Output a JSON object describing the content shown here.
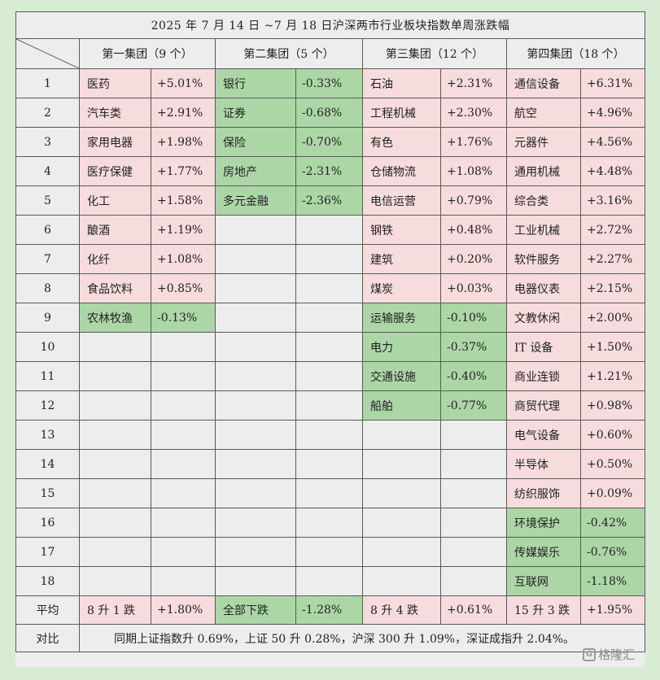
{
  "title": "2025 年 7 月 14 日 ~7 月 18 日沪深两市行业板块指数单周涨跌幅",
  "groups": [
    {
      "name": "第一集团（9 个）"
    },
    {
      "name": "第二集团（5 个）"
    },
    {
      "name": "第三集团（12 个）"
    },
    {
      "name": "第四集团（18 个）"
    }
  ],
  "rows": [
    {
      "idx": "1",
      "cells": [
        [
          "医药",
          "+5.01%"
        ],
        [
          "银行",
          "-0.33%"
        ],
        [
          "石油",
          "+2.31%"
        ],
        [
          "通信设备",
          "+6.31%"
        ]
      ]
    },
    {
      "idx": "2",
      "cells": [
        [
          "汽车类",
          "+2.91%"
        ],
        [
          "证券",
          "-0.68%"
        ],
        [
          "工程机械",
          "+2.30%"
        ],
        [
          "航空",
          "+4.96%"
        ]
      ]
    },
    {
      "idx": "3",
      "cells": [
        [
          "家用电器",
          "+1.98%"
        ],
        [
          "保险",
          "-0.70%"
        ],
        [
          "有色",
          "+1.76%"
        ],
        [
          "元器件",
          "+4.56%"
        ]
      ]
    },
    {
      "idx": "4",
      "cells": [
        [
          "医疗保健",
          "+1.77%"
        ],
        [
          "房地产",
          "-2.31%"
        ],
        [
          "仓储物流",
          "+1.08%"
        ],
        [
          "通用机械",
          "+4.48%"
        ]
      ]
    },
    {
      "idx": "5",
      "cells": [
        [
          "化工",
          "+1.58%"
        ],
        [
          "多元金融",
          "-2.36%"
        ],
        [
          "电信运营",
          "+0.79%"
        ],
        [
          "综合类",
          "+3.16%"
        ]
      ]
    },
    {
      "idx": "6",
      "cells": [
        [
          "酿酒",
          "+1.19%"
        ],
        null,
        [
          "钢铁",
          "+0.48%"
        ],
        [
          "工业机械",
          "+2.72%"
        ]
      ]
    },
    {
      "idx": "7",
      "cells": [
        [
          "化纤",
          "+1.08%"
        ],
        null,
        [
          "建筑",
          "+0.20%"
        ],
        [
          "软件服务",
          "+2.27%"
        ]
      ]
    },
    {
      "idx": "8",
      "cells": [
        [
          "食品饮料",
          "+0.85%"
        ],
        null,
        [
          "煤炭",
          "+0.03%"
        ],
        [
          "电器仪表",
          "+2.15%"
        ]
      ]
    },
    {
      "idx": "9",
      "cells": [
        [
          "农林牧渔",
          "-0.13%"
        ],
        null,
        [
          "运输服务",
          "-0.10%"
        ],
        [
          "文教休闲",
          "+2.00%"
        ]
      ]
    },
    {
      "idx": "10",
      "cells": [
        null,
        null,
        [
          "电力",
          "-0.37%"
        ],
        [
          "IT 设备",
          "+1.50%"
        ]
      ]
    },
    {
      "idx": "11",
      "cells": [
        null,
        null,
        [
          "交通设施",
          "-0.40%"
        ],
        [
          "商业连锁",
          "+1.21%"
        ]
      ]
    },
    {
      "idx": "12",
      "cells": [
        null,
        null,
        [
          "船舶",
          "-0.77%"
        ],
        [
          "商贸代理",
          "+0.98%"
        ]
      ]
    },
    {
      "idx": "13",
      "cells": [
        null,
        null,
        null,
        [
          "电气设备",
          "+0.60%"
        ]
      ]
    },
    {
      "idx": "14",
      "cells": [
        null,
        null,
        null,
        [
          "半导体",
          "+0.50%"
        ]
      ]
    },
    {
      "idx": "15",
      "cells": [
        null,
        null,
        null,
        [
          "纺织服饰",
          "+0.09%"
        ]
      ]
    },
    {
      "idx": "16",
      "cells": [
        null,
        null,
        null,
        [
          "环境保护",
          "-0.42%"
        ]
      ]
    },
    {
      "idx": "17",
      "cells": [
        null,
        null,
        null,
        [
          "传媒娱乐",
          "-0.76%"
        ]
      ]
    },
    {
      "idx": "18",
      "cells": [
        null,
        null,
        null,
        [
          "互联网",
          "-1.18%"
        ]
      ]
    }
  ],
  "average": {
    "label": "平均",
    "cells": [
      [
        "8 升 1 跌",
        "+1.80%"
      ],
      [
        "全部下跌",
        "-1.28%"
      ],
      [
        "8 升 4 跌",
        "+0.61%"
      ],
      [
        "15 升 3 跌",
        "+1.95%"
      ]
    ]
  },
  "compare": {
    "label": "对比",
    "text": "同期上证指数升 0.69%，上证 50 升 0.28%，沪深 300 升 1.09%，深证成指升 2.04%。"
  },
  "watermark": {
    "icon": "gelonghui-logo-icon",
    "text": "格隆汇"
  },
  "colors": {
    "up": "#f6dcdc",
    "down": "#acd6a6",
    "empty": "#ededed",
    "background": "#d7ecd3"
  }
}
